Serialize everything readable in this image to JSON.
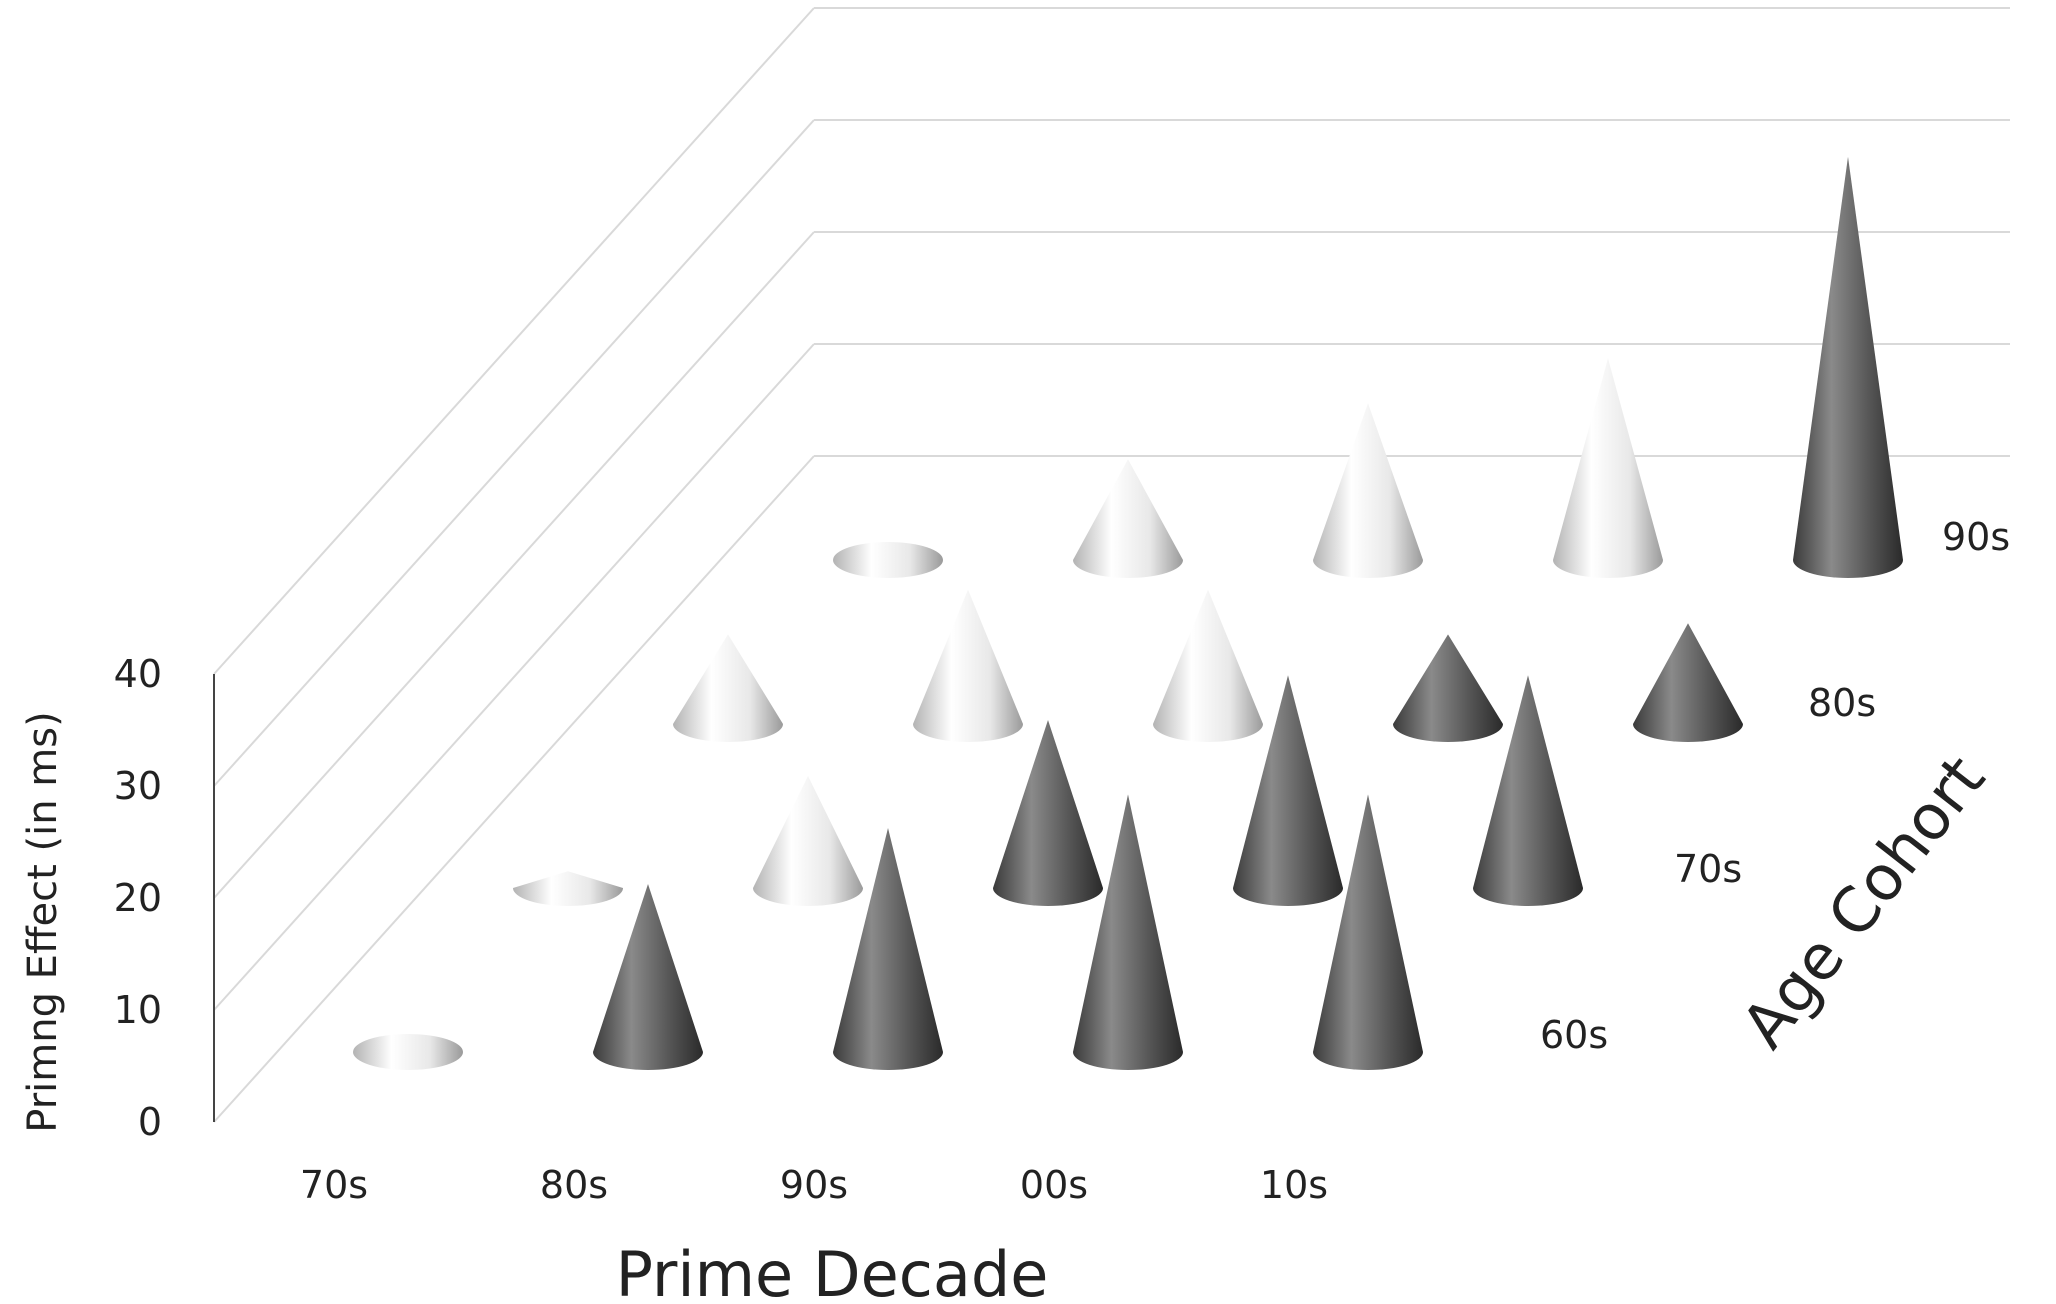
{
  "chart_data": {
    "type": "bar3d-cone",
    "title": "",
    "xlabel": "Prime Decade",
    "ylabel": "Primng Effect (in ms)",
    "zlabel": "Age Cohort",
    "categories": [
      "70s",
      "80s",
      "90s",
      "00s",
      "10s"
    ],
    "yticks": [
      "0",
      "10",
      "20",
      "30",
      "40"
    ],
    "ylim": [
      0,
      40
    ],
    "series": [
      {
        "name": "60s",
        "values": [
          0.5,
          15,
          20,
          23,
          23
        ]
      },
      {
        "name": "70s",
        "values": [
          1.5,
          10,
          15,
          19,
          19
        ]
      },
      {
        "name": "80s",
        "values": [
          8,
          12,
          12,
          8,
          9
        ]
      },
      {
        "name": "90s",
        "values": [
          0,
          9,
          14,
          18,
          36
        ]
      }
    ],
    "highlight_cells": [
      [
        0,
        1
      ],
      [
        0,
        2
      ],
      [
        0,
        3
      ],
      [
        0,
        4
      ],
      [
        1,
        2
      ],
      [
        1,
        3
      ],
      [
        1,
        4
      ],
      [
        2,
        3
      ],
      [
        2,
        4
      ],
      [
        3,
        4
      ]
    ],
    "colors": {
      "light": "#e6e6e6",
      "dark": "#555555",
      "grid": "#d9d9d9",
      "axis": "#444444"
    }
  }
}
